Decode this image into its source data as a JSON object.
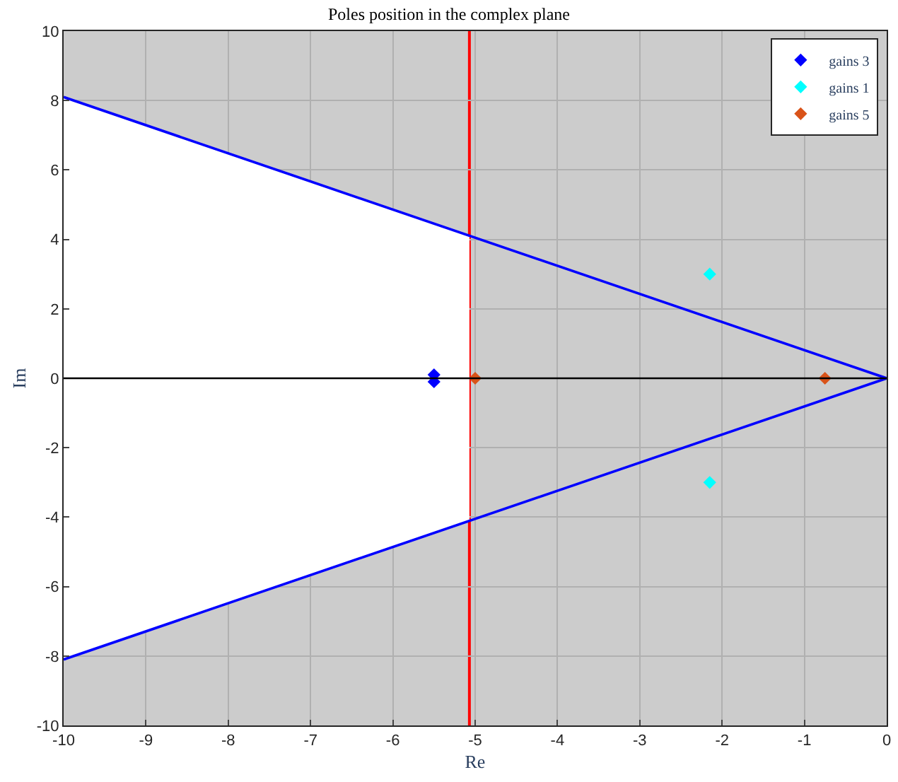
{
  "chart_data": {
    "type": "scatter",
    "title": "Poles position in the complex plane",
    "xlabel": "Re",
    "ylabel": "Im",
    "xlim": [
      -10,
      0
    ],
    "ylim": [
      -10,
      10
    ],
    "xticks": [
      -10,
      -9,
      -8,
      -7,
      -6,
      -5,
      -4,
      -3,
      -2,
      -1,
      0
    ],
    "yticks": [
      -10,
      -8,
      -6,
      -4,
      -2,
      0,
      2,
      4,
      6,
      8,
      10
    ],
    "grid": true,
    "legend": "top right",
    "marker": "diamond",
    "bands": [
      {
        "axis": "x",
        "from": -10,
        "to": 0,
        "color": "#cccccc"
      }
    ],
    "ref_lines": [
      {
        "axis": "y",
        "value": 0,
        "color": "#000000"
      },
      {
        "axis": "x",
        "value": -5.07,
        "color": "#ff0000"
      }
    ],
    "series": [
      {
        "type": "area",
        "color": "#ffffff",
        "x": [
          -10,
          -5.07
        ],
        "values": [
          8.1,
          4.1
        ],
        "marker": "none"
      },
      {
        "type": "area",
        "color": "#ffffff",
        "x": [
          -10,
          -5.07
        ],
        "values": [
          -8.1,
          -4.1
        ],
        "marker": "none"
      },
      {
        "type": "line",
        "color": "#0000ff",
        "x": [
          -10,
          0
        ],
        "values": [
          8.1,
          0
        ],
        "marker": "none"
      },
      {
        "type": "line",
        "color": "#0000ff",
        "x": [
          -10,
          0
        ],
        "values": [
          -8.1,
          0
        ],
        "marker": "none"
      },
      {
        "name": "gains 3",
        "color": "#0000ff",
        "x": [
          -5.5,
          -5.5
        ],
        "values": [
          0.1,
          -0.1
        ]
      },
      {
        "name": "gains 1",
        "color": "#00ffff",
        "x": [
          -2.15,
          -2.15
        ],
        "values": [
          3,
          -3
        ]
      },
      {
        "name": "gains 5",
        "color": "#d95319",
        "x": [
          -5.0,
          -0.75
        ],
        "values": [
          0,
          0
        ]
      }
    ]
  }
}
